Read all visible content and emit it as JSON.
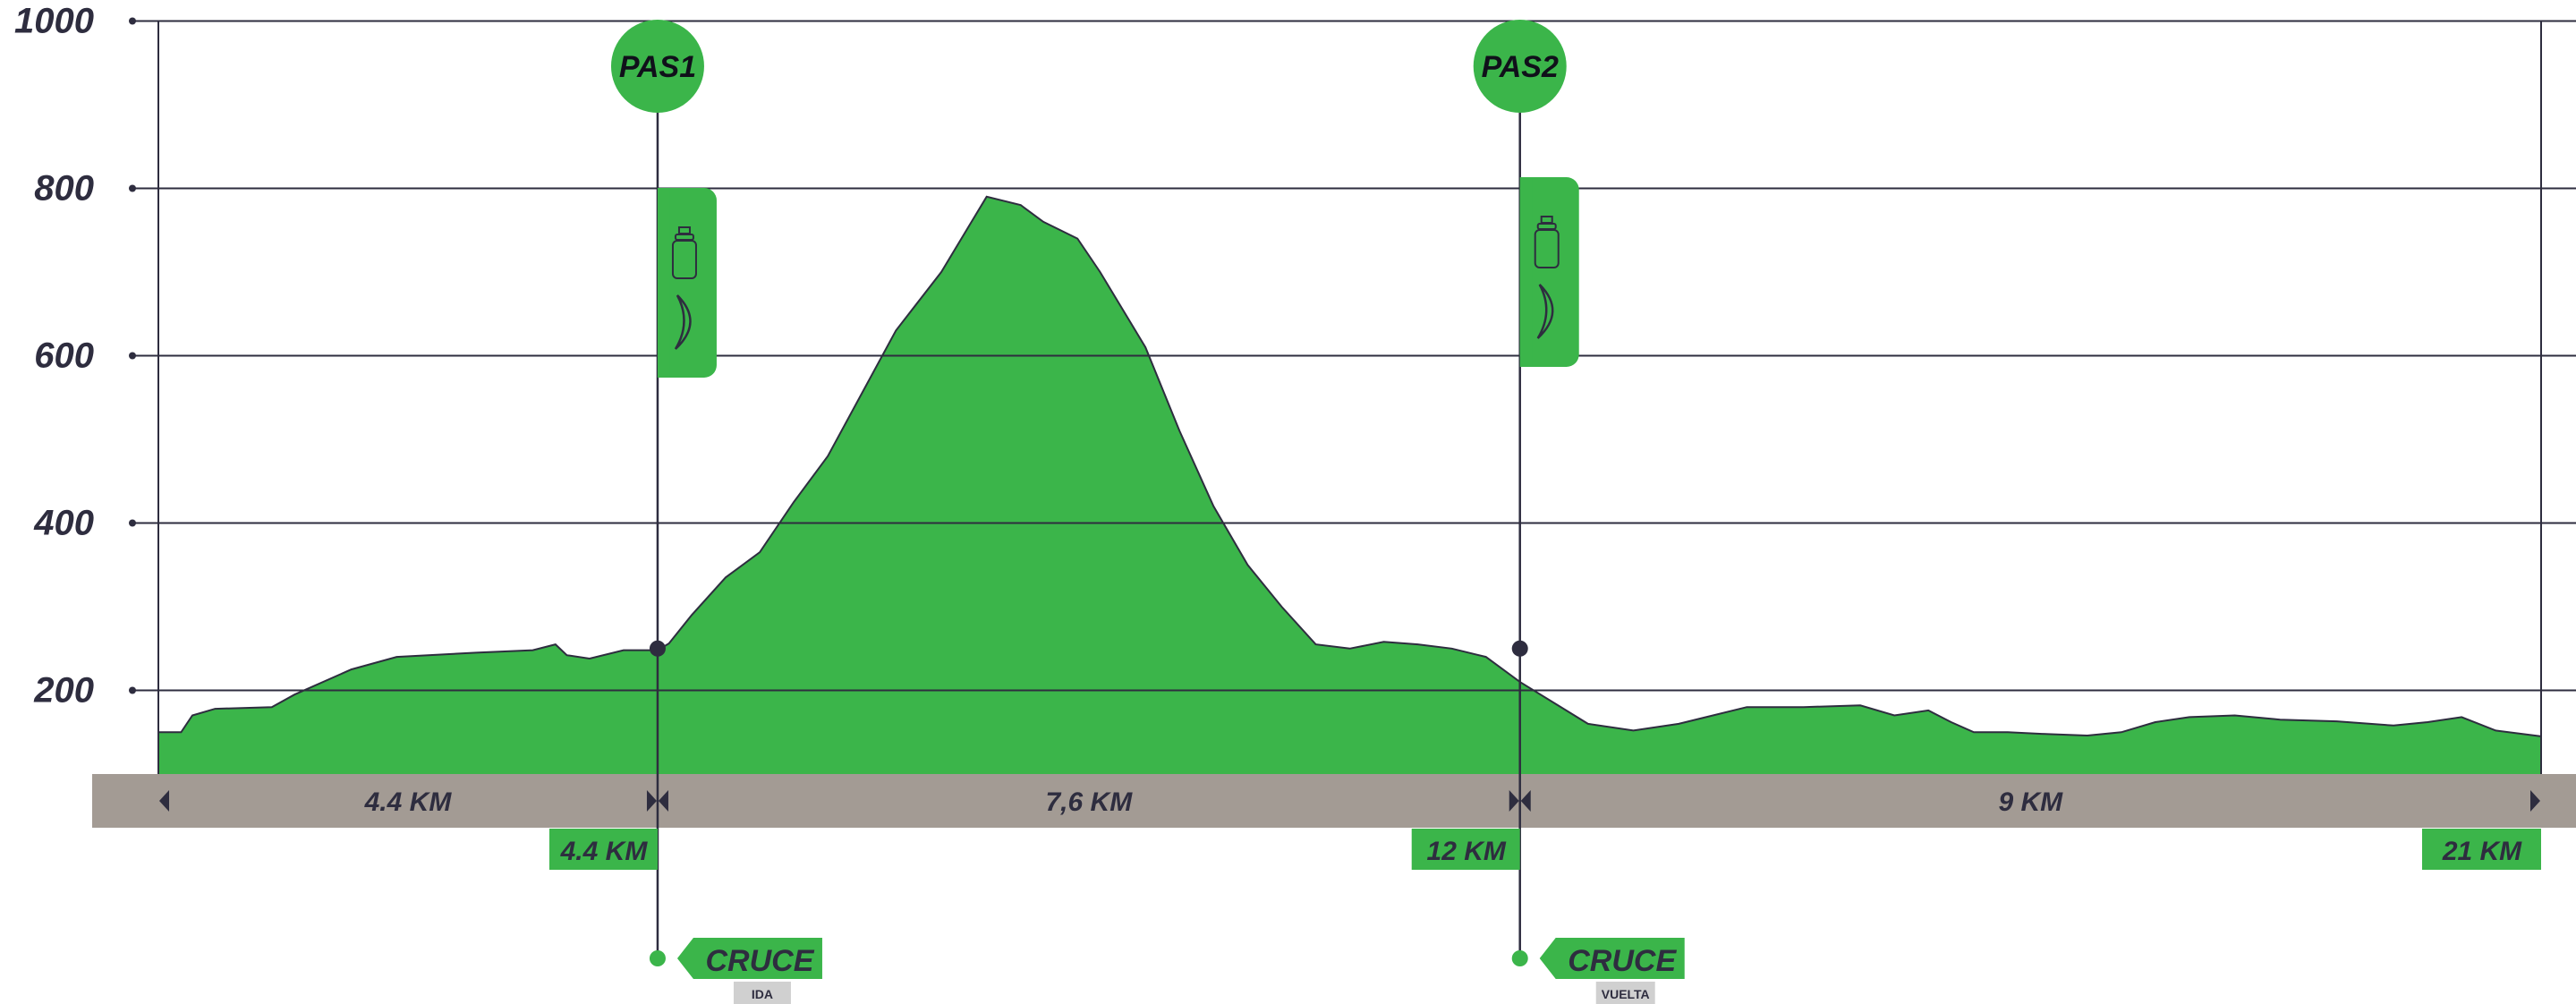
{
  "colors": {
    "profile_fill": "#3bb54a",
    "profile_stroke": "#2e2d3f",
    "grid": "#2e2d3f",
    "axis_band": "#a39b94",
    "marker_green": "#3bb54a",
    "tag_gray": "#d0d0d0",
    "text_dark": "#2e2d3f"
  },
  "chart_data": {
    "type": "area",
    "title": "",
    "xlabel": "",
    "ylabel": "",
    "x_unit": "km",
    "xlim": [
      0,
      21
    ],
    "ylim": [
      100,
      1000
    ],
    "y_ticks": [
      200,
      400,
      600,
      800,
      1000
    ],
    "y_tick_labels": [
      "200",
      "400",
      "600",
      "800",
      "1000"
    ],
    "grid": true,
    "series": [
      {
        "x": [
          0.0,
          0.2,
          0.3,
          0.5,
          1.0,
          1.2,
          1.7,
          2.1,
          2.8,
          3.3,
          3.5,
          3.6,
          3.8,
          4.1,
          4.4,
          4.5,
          4.7,
          5.0,
          5.3,
          5.6,
          5.9,
          6.2,
          6.5,
          6.9,
          7.3,
          7.6,
          7.8,
          8.1,
          8.3,
          8.7,
          9.0,
          9.3,
          9.6,
          9.9,
          10.2,
          10.5,
          10.8,
          11.1,
          11.4,
          11.7,
          12.0,
          12.3,
          12.6,
          13.0,
          13.4,
          14.0,
          14.5,
          15.0,
          15.3,
          15.6,
          15.8,
          16.0,
          16.3,
          16.6,
          17.0,
          17.3,
          17.6,
          17.9,
          18.3,
          18.7,
          19.2,
          19.7,
          20.0,
          20.3,
          20.6,
          21.0
        ],
        "y": [
          150,
          150,
          170,
          178,
          180,
          195,
          225,
          240,
          245,
          248,
          255,
          242,
          238,
          248,
          248,
          256,
          290,
          335,
          365,
          425,
          480,
          555,
          630,
          700,
          790,
          780,
          760,
          740,
          700,
          610,
          510,
          420,
          350,
          300,
          255,
          250,
          258,
          255,
          250,
          240,
          210,
          185,
          160,
          152,
          160,
          180,
          180,
          182,
          170,
          176,
          162,
          150,
          150,
          148,
          146,
          150,
          162,
          168,
          170,
          165,
          163,
          158,
          162,
          168,
          152,
          145
        ]
      }
    ],
    "segments": [
      {
        "from_km": 0.0,
        "to_km": 4.4,
        "label": "4.4 KM"
      },
      {
        "from_km": 4.4,
        "to_km": 12.0,
        "label": "7,6 KM"
      },
      {
        "from_km": 12.0,
        "to_km": 21.0,
        "label": "9 KM"
      }
    ],
    "markers": [
      {
        "km": 4.4,
        "km_label": "4.4 KM",
        "circle_label": "PAS1",
        "elevation": 250,
        "icons": [
          "bottle-icon",
          "banana-icon"
        ],
        "cruce_label": "CRUCE",
        "cruce_sub": "IDA"
      },
      {
        "km": 12.0,
        "km_label": "12 KM",
        "circle_label": "PAS2",
        "elevation": 250,
        "icons": [
          "bottle-icon",
          "banana-icon"
        ],
        "cruce_label": "CRUCE",
        "cruce_sub": "VUELTA"
      }
    ],
    "end_marker": {
      "km": 21.0,
      "km_label": "21 KM"
    }
  }
}
